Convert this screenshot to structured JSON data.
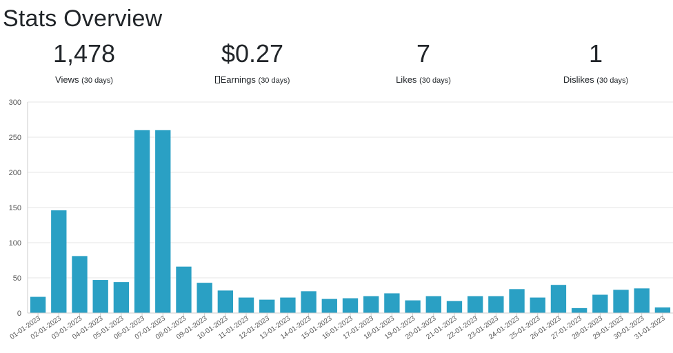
{
  "page": {
    "title": "Stats Overview"
  },
  "stats": [
    {
      "value": "1,478",
      "label": "Views",
      "period": "(30 days)"
    },
    {
      "value": "$0.27",
      "label": "Earnings",
      "period": "(30 days)",
      "icon": "missing-glyph-icon"
    },
    {
      "value": "7",
      "label": "Likes",
      "period": "(30 days)"
    },
    {
      "value": "1",
      "label": "Dislikes",
      "period": "(30 days)"
    }
  ],
  "colors": {
    "bar": "#2aa0c4",
    "grid": "#e6e6e6",
    "axis_text": "#555555"
  },
  "chart_data": {
    "type": "bar",
    "title": "",
    "xlabel": "",
    "ylabel": "",
    "ylim": [
      0,
      300
    ],
    "yticks": [
      0,
      50,
      100,
      150,
      200,
      250,
      300
    ],
    "grid": true,
    "categories": [
      "01-01-2023",
      "02-01-2023",
      "03-01-2023",
      "04-01-2023",
      "05-01-2023",
      "06-01-2023",
      "07-01-2023",
      "08-01-2023",
      "09-01-2023",
      "10-01-2023",
      "11-01-2023",
      "12-01-2023",
      "13-01-2023",
      "14-01-2023",
      "15-01-2023",
      "16-01-2023",
      "17-01-2023",
      "18-01-2023",
      "19-01-2023",
      "20-01-2023",
      "21-01-2023",
      "22-01-2023",
      "23-01-2023",
      "24-01-2023",
      "25-01-2023",
      "26-01-2023",
      "27-01-2023",
      "28-01-2023",
      "29-01-2023",
      "30-01-2023",
      "31-01-2023"
    ],
    "values": [
      23,
      146,
      81,
      47,
      44,
      260,
      260,
      66,
      43,
      32,
      22,
      19,
      22,
      31,
      20,
      21,
      24,
      28,
      18,
      24,
      17,
      24,
      24,
      34,
      22,
      40,
      7,
      26,
      33,
      35,
      8
    ]
  }
}
